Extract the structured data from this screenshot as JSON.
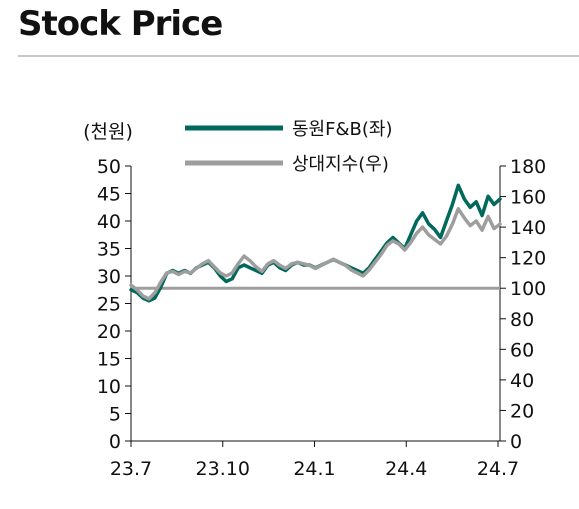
{
  "header": {
    "title": "Stock Price"
  },
  "chart_data": {
    "type": "line",
    "left_unit_label": "(천원)",
    "legend": [
      {
        "name": "동원F&B(좌)",
        "color": "#00695c",
        "axis": "left"
      },
      {
        "name": "상대지수(우)",
        "color": "#9e9e9e",
        "axis": "right"
      }
    ],
    "x_tick_labels": [
      "23.7",
      "23.10",
      "24.1",
      "24.4",
      "24.7"
    ],
    "y_left": {
      "min": 0,
      "max": 50,
      "ticks": [
        0,
        5,
        10,
        15,
        20,
        25,
        30,
        35,
        40,
        45,
        50
      ]
    },
    "y_right": {
      "min": 0,
      "max": 180,
      "ticks": [
        0,
        20,
        40,
        60,
        80,
        100,
        120,
        140,
        160,
        180
      ]
    },
    "x_range": [
      0,
      12.4
    ],
    "reference_line": {
      "axis": "right",
      "value": 100,
      "color": "#9e9e9e"
    },
    "series": [
      {
        "name": "동원F&B(좌)",
        "axis": "left",
        "color": "#00695c",
        "x": [
          0.0,
          0.2,
          0.4,
          0.6,
          0.8,
          1.0,
          1.2,
          1.4,
          1.6,
          1.8,
          2.0,
          2.2,
          2.4,
          2.6,
          2.8,
          3.0,
          3.2,
          3.4,
          3.6,
          3.8,
          4.0,
          4.2,
          4.4,
          4.6,
          4.8,
          5.0,
          5.2,
          5.4,
          5.6,
          5.8,
          6.0,
          6.2,
          6.4,
          6.6,
          6.8,
          7.0,
          7.2,
          7.4,
          7.6,
          7.8,
          8.0,
          8.2,
          8.4,
          8.6,
          8.8,
          9.0,
          9.2,
          9.4,
          9.6,
          9.8,
          10.0,
          10.2,
          10.4,
          10.6,
          10.8,
          11.0,
          11.2,
          11.4,
          11.6,
          11.8,
          12.0,
          12.2,
          12.4
        ],
        "values": [
          27.5,
          27.0,
          26.0,
          25.5,
          26.0,
          28.0,
          30.5,
          31.0,
          30.5,
          31.0,
          30.5,
          31.5,
          32.0,
          32.5,
          31.5,
          30.0,
          29.0,
          29.5,
          31.5,
          32.0,
          31.5,
          31.0,
          30.5,
          32.0,
          32.5,
          31.5,
          31.0,
          32.0,
          32.5,
          32.0,
          32.0,
          31.5,
          32.0,
          32.5,
          33.0,
          32.5,
          32.0,
          31.5,
          31.0,
          30.5,
          31.5,
          33.0,
          34.5,
          36.0,
          37.0,
          36.0,
          35.0,
          37.5,
          40.0,
          41.5,
          39.5,
          38.5,
          37.0,
          40.0,
          43.0,
          46.5,
          44.0,
          42.5,
          43.5,
          41.0,
          44.5,
          43.0,
          44.0
        ]
      },
      {
        "name": "상대지수(우)",
        "axis": "right",
        "color": "#9e9e9e",
        "x": [
          0.0,
          0.2,
          0.4,
          0.6,
          0.8,
          1.0,
          1.2,
          1.4,
          1.6,
          1.8,
          2.0,
          2.2,
          2.4,
          2.6,
          2.8,
          3.0,
          3.2,
          3.4,
          3.6,
          3.8,
          4.0,
          4.2,
          4.4,
          4.6,
          4.8,
          5.0,
          5.2,
          5.4,
          5.6,
          5.8,
          6.0,
          6.2,
          6.4,
          6.6,
          6.8,
          7.0,
          7.2,
          7.4,
          7.6,
          7.8,
          8.0,
          8.2,
          8.4,
          8.6,
          8.8,
          9.0,
          9.2,
          9.4,
          9.6,
          9.8,
          10.0,
          10.2,
          10.4,
          10.6,
          10.8,
          11.0,
          11.2,
          11.4,
          11.6,
          11.8,
          12.0,
          12.2,
          12.4
        ],
        "values": [
          102,
          99,
          95,
          93,
          97,
          104,
          110,
          111,
          109,
          111,
          110,
          113,
          116,
          118,
          114,
          110,
          108,
          110,
          116,
          121,
          118,
          114,
          111,
          116,
          118,
          115,
          113,
          116,
          117,
          116,
          115,
          113,
          115,
          117,
          119,
          117,
          115,
          112,
          110,
          108,
          112,
          117,
          122,
          128,
          131,
          129,
          125,
          130,
          136,
          140,
          135,
          132,
          129,
          134,
          142,
          152,
          146,
          141,
          144,
          138,
          147,
          139,
          142
        ]
      }
    ]
  }
}
